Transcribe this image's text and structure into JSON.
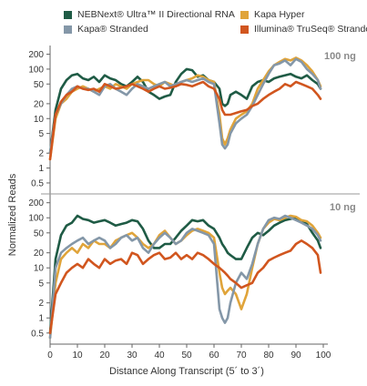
{
  "legend": [
    {
      "name": "NEBNext® Ultra™ II Directional RNA",
      "color": "#1f5b45"
    },
    {
      "name": "Kapa Hyper",
      "color": "#e0a43a"
    },
    {
      "name": "Kapa® Stranded",
      "color": "#8497a8"
    },
    {
      "name": "Illumina® TruSeq® Stranded",
      "color": "#d1561f"
    }
  ],
  "ylabel": "Normalized Reads",
  "xlabel": "Distance Along Transcript (5´ to 3´)",
  "chart_data": [
    {
      "type": "line",
      "panel_label": "100 ng",
      "yscale": "log",
      "ylim": [
        0.3,
        300
      ],
      "xlim": [
        0,
        100
      ],
      "yticks": [
        "0.5",
        "1",
        "2",
        "5",
        "10",
        "20",
        "50",
        "100",
        "200"
      ],
      "ytick_values": [
        0.5,
        1,
        2,
        5,
        10,
        20,
        50,
        100,
        200
      ],
      "series": [
        {
          "name": "NEBNext® Ultra™ II Directional RNA",
          "color": "#1f5b45",
          "x": [
            0,
            2,
            4,
            6,
            8,
            10,
            12,
            14,
            16,
            18,
            20,
            22,
            24,
            26,
            28,
            30,
            32,
            34,
            36,
            38,
            40,
            42,
            44,
            46,
            48,
            50,
            52,
            54,
            56,
            58,
            60,
            62,
            63,
            64,
            65,
            66,
            68,
            70,
            72,
            74,
            76,
            78,
            80,
            82,
            84,
            86,
            88,
            90,
            92,
            94,
            96,
            98,
            99
          ],
          "y": [
            2,
            15,
            40,
            60,
            75,
            80,
            65,
            60,
            70,
            55,
            75,
            65,
            60,
            50,
            45,
            55,
            70,
            55,
            35,
            30,
            25,
            28,
            30,
            55,
            80,
            100,
            95,
            70,
            75,
            60,
            55,
            40,
            20,
            18,
            20,
            30,
            35,
            30,
            25,
            45,
            55,
            60,
            55,
            65,
            70,
            75,
            80,
            70,
            65,
            75,
            60,
            50,
            40
          ]
        },
        {
          "name": "Kapa Hyper",
          "color": "#e0a43a",
          "x": [
            0,
            2,
            4,
            6,
            8,
            10,
            12,
            14,
            16,
            18,
            20,
            22,
            24,
            26,
            28,
            30,
            32,
            34,
            36,
            38,
            40,
            42,
            44,
            46,
            48,
            50,
            52,
            54,
            56,
            58,
            60,
            62,
            63,
            64,
            65,
            66,
            68,
            70,
            72,
            74,
            76,
            78,
            80,
            82,
            84,
            86,
            88,
            90,
            92,
            94,
            96,
            98,
            99
          ],
          "y": [
            1.5,
            10,
            20,
            25,
            35,
            40,
            45,
            40,
            35,
            40,
            45,
            40,
            50,
            45,
            40,
            50,
            55,
            60,
            60,
            50,
            45,
            55,
            50,
            45,
            55,
            60,
            65,
            75,
            70,
            60,
            55,
            12,
            4,
            3,
            4,
            6,
            10,
            12,
            14,
            20,
            40,
            60,
            90,
            120,
            140,
            160,
            150,
            170,
            150,
            120,
            90,
            60,
            45
          ]
        },
        {
          "name": "Kapa® Stranded",
          "color": "#8497a8",
          "x": [
            0,
            2,
            4,
            6,
            8,
            10,
            12,
            14,
            16,
            18,
            20,
            22,
            24,
            26,
            28,
            30,
            32,
            34,
            36,
            38,
            40,
            42,
            44,
            46,
            48,
            50,
            52,
            54,
            56,
            58,
            60,
            62,
            63,
            64,
            65,
            66,
            68,
            70,
            72,
            74,
            76,
            78,
            80,
            82,
            84,
            86,
            88,
            90,
            92,
            94,
            96,
            98,
            99
          ],
          "y": [
            2,
            12,
            20,
            30,
            40,
            45,
            40,
            40,
            35,
            30,
            45,
            50,
            40,
            35,
            30,
            40,
            50,
            45,
            40,
            45,
            50,
            55,
            45,
            50,
            55,
            60,
            55,
            60,
            65,
            55,
            50,
            8,
            3,
            2.5,
            3,
            5,
            8,
            10,
            12,
            18,
            30,
            50,
            80,
            120,
            130,
            150,
            120,
            160,
            140,
            100,
            80,
            60,
            40
          ]
        },
        {
          "name": "Illumina® TruSeq® Stranded",
          "color": "#d1561f",
          "x": [
            0,
            2,
            4,
            6,
            8,
            10,
            12,
            14,
            16,
            18,
            20,
            22,
            24,
            26,
            28,
            30,
            32,
            34,
            36,
            38,
            40,
            42,
            44,
            46,
            48,
            50,
            52,
            54,
            56,
            58,
            60,
            62,
            63,
            64,
            65,
            66,
            68,
            70,
            72,
            74,
            76,
            78,
            80,
            82,
            84,
            86,
            88,
            90,
            92,
            94,
            96,
            98,
            99
          ],
          "y": [
            1.5,
            12,
            22,
            30,
            35,
            45,
            40,
            38,
            40,
            35,
            50,
            45,
            40,
            42,
            45,
            50,
            45,
            40,
            35,
            40,
            45,
            40,
            42,
            45,
            50,
            48,
            45,
            50,
            55,
            45,
            40,
            25,
            15,
            12,
            12,
            12,
            13,
            14,
            15,
            18,
            20,
            25,
            30,
            35,
            40,
            50,
            45,
            55,
            50,
            45,
            40,
            30,
            25
          ]
        }
      ]
    },
    {
      "type": "line",
      "panel_label": "10 ng",
      "yscale": "log",
      "ylim": [
        0.3,
        300
      ],
      "xlim": [
        0,
        100
      ],
      "yticks": [
        "0.5",
        "1",
        "2",
        "5",
        "10",
        "20",
        "50",
        "100",
        "200"
      ],
      "ytick_values": [
        0.5,
        1,
        2,
        5,
        10,
        20,
        50,
        100,
        200
      ],
      "xticks": [
        "0",
        "10",
        "20",
        "30",
        "40",
        "50",
        "60",
        "70",
        "80",
        "90",
        "100"
      ],
      "xtick_values": [
        0,
        10,
        20,
        30,
        40,
        50,
        60,
        70,
        80,
        90,
        100
      ],
      "series": [
        {
          "name": "NEBNext® Ultra™ II Directional RNA",
          "color": "#1f5b45",
          "x": [
            0,
            2,
            4,
            6,
            8,
            10,
            12,
            14,
            16,
            18,
            20,
            22,
            24,
            26,
            28,
            30,
            32,
            34,
            36,
            38,
            40,
            42,
            44,
            46,
            48,
            50,
            52,
            54,
            56,
            58,
            60,
            62,
            63,
            64,
            65,
            66,
            68,
            70,
            72,
            74,
            76,
            78,
            80,
            82,
            84,
            86,
            88,
            90,
            92,
            94,
            96,
            98,
            99
          ],
          "y": [
            0.5,
            15,
            45,
            70,
            80,
            110,
            95,
            90,
            80,
            85,
            90,
            80,
            70,
            75,
            80,
            90,
            85,
            60,
            35,
            25,
            25,
            30,
            30,
            40,
            55,
            70,
            90,
            85,
            90,
            70,
            60,
            40,
            30,
            25,
            20,
            18,
            15,
            15,
            25,
            40,
            50,
            45,
            55,
            70,
            80,
            90,
            95,
            100,
            85,
            75,
            50,
            35,
            25
          ]
        },
        {
          "name": "Kapa Hyper",
          "color": "#e0a43a",
          "x": [
            0,
            2,
            4,
            6,
            8,
            10,
            12,
            14,
            16,
            18,
            20,
            22,
            24,
            26,
            28,
            30,
            32,
            34,
            36,
            38,
            40,
            42,
            44,
            46,
            48,
            50,
            52,
            54,
            56,
            58,
            60,
            62,
            63,
            64,
            65,
            66,
            68,
            70,
            72,
            74,
            76,
            78,
            80,
            82,
            84,
            86,
            88,
            90,
            92,
            94,
            96,
            98,
            99
          ],
          "y": [
            0.4,
            5,
            15,
            20,
            25,
            20,
            30,
            25,
            35,
            30,
            30,
            25,
            35,
            40,
            45,
            50,
            40,
            30,
            25,
            30,
            45,
            55,
            40,
            30,
            35,
            45,
            55,
            60,
            55,
            50,
            40,
            8,
            4,
            3,
            3.5,
            4,
            3,
            1.5,
            3,
            10,
            30,
            60,
            80,
            95,
            90,
            100,
            110,
            105,
            90,
            85,
            70,
            50,
            40
          ]
        },
        {
          "name": "Kapa® Stranded",
          "color": "#8497a8",
          "x": [
            0,
            2,
            4,
            6,
            8,
            10,
            12,
            14,
            16,
            18,
            20,
            22,
            24,
            26,
            28,
            30,
            32,
            34,
            36,
            38,
            40,
            42,
            44,
            46,
            48,
            50,
            52,
            54,
            56,
            58,
            60,
            62,
            63,
            64,
            65,
            66,
            68,
            70,
            72,
            74,
            76,
            78,
            80,
            82,
            84,
            86,
            88,
            90,
            92,
            94,
            96,
            98,
            99
          ],
          "y": [
            0.4,
            10,
            20,
            25,
            30,
            35,
            40,
            30,
            35,
            40,
            35,
            25,
            30,
            40,
            45,
            35,
            40,
            25,
            20,
            30,
            40,
            50,
            40,
            30,
            35,
            50,
            60,
            55,
            50,
            45,
            30,
            1.5,
            1,
            0.8,
            1,
            2,
            5,
            8,
            6,
            12,
            30,
            60,
            90,
            100,
            95,
            110,
            100,
            90,
            80,
            70,
            60,
            45,
            35
          ]
        },
        {
          "name": "Illumina® TruSeq® Stranded",
          "color": "#d1561f",
          "x": [
            0,
            2,
            4,
            6,
            8,
            10,
            12,
            14,
            16,
            18,
            20,
            22,
            24,
            26,
            28,
            30,
            32,
            34,
            36,
            38,
            40,
            42,
            44,
            46,
            48,
            50,
            52,
            54,
            56,
            58,
            60,
            62,
            63,
            64,
            65,
            66,
            68,
            70,
            72,
            74,
            76,
            78,
            80,
            82,
            84,
            86,
            88,
            90,
            92,
            94,
            96,
            98,
            99
          ],
          "y": [
            0.5,
            3,
            5,
            8,
            10,
            12,
            10,
            15,
            12,
            10,
            15,
            12,
            14,
            15,
            12,
            20,
            18,
            12,
            15,
            18,
            20,
            15,
            16,
            20,
            15,
            18,
            15,
            20,
            18,
            15,
            12,
            10,
            9,
            8,
            7,
            6,
            5,
            4,
            4.5,
            5,
            8,
            10,
            14,
            16,
            18,
            20,
            22,
            30,
            35,
            30,
            25,
            18,
            8
          ]
        }
      ]
    }
  ]
}
